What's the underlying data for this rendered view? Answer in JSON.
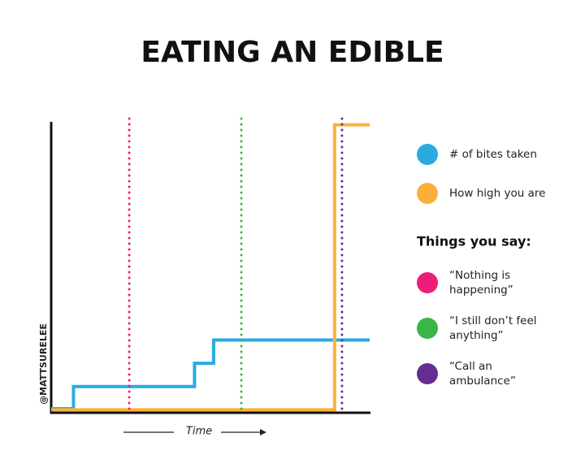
{
  "chart_data": {
    "type": "line",
    "title": "EATING AN EDIBLE",
    "x_label": "Time",
    "credit": "@MATTSURELEE",
    "xlim": [
      0,
      100
    ],
    "ylim": [
      0,
      100
    ],
    "series": [
      {
        "name": "# of bites taken",
        "color": "#29abe2",
        "x": [
          0,
          7,
          7,
          45,
          45,
          51,
          51,
          100
        ],
        "values": [
          1.4,
          1.4,
          9,
          9,
          17,
          17,
          25,
          25
        ]
      },
      {
        "name": "How high you are",
        "color": "#fbb03b",
        "x": [
          0,
          89,
          89,
          100
        ],
        "values": [
          1,
          1,
          99,
          99
        ]
      }
    ],
    "markers_title": "Things you say:",
    "markers": [
      {
        "name": "“Nothing is happening”",
        "color": "#ec1e79",
        "x": 24.5
      },
      {
        "name": "“I still don’t feel anything”",
        "color": "#39b54a",
        "x": 59.7
      },
      {
        "name": "“Call an ambulance”",
        "color": "#662d91",
        "x": 91.3
      }
    ]
  }
}
